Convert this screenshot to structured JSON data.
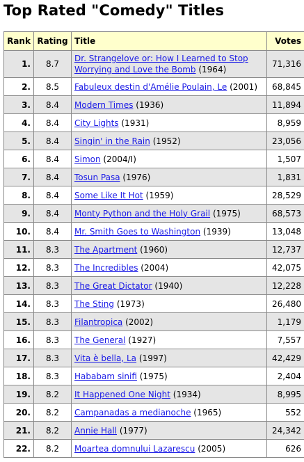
{
  "page": {
    "title": "Top Rated \"Comedy\" Titles"
  },
  "table": {
    "headers": {
      "rank": "Rank",
      "rating": "Rating",
      "title": "Title",
      "votes": "Votes"
    },
    "rows": [
      {
        "rank": "1.",
        "rating": "8.7",
        "title": "Dr. Strangelove or: How I Learned to Stop Worrying and Love the Bomb",
        "year": "(1964)",
        "votes": "71,316"
      },
      {
        "rank": "2.",
        "rating": "8.5",
        "title": "Fabuleux destin d'Amélie Poulain, Le",
        "year": "(2001)",
        "votes": "68,845"
      },
      {
        "rank": "3.",
        "rating": "8.4",
        "title": "Modern Times",
        "year": "(1936)",
        "votes": "11,894"
      },
      {
        "rank": "4.",
        "rating": "8.4",
        "title": "City Lights",
        "year": "(1931)",
        "votes": "8,959"
      },
      {
        "rank": "5.",
        "rating": "8.4",
        "title": "Singin' in the Rain",
        "year": "(1952)",
        "votes": "23,056"
      },
      {
        "rank": "6.",
        "rating": "8.4",
        "title": "Simon",
        "year": "(2004/I)",
        "votes": "1,507"
      },
      {
        "rank": "7.",
        "rating": "8.4",
        "title": "Tosun Pasa",
        "year": "(1976)",
        "votes": "1,831"
      },
      {
        "rank": "8.",
        "rating": "8.4",
        "title": "Some Like It Hot",
        "year": "(1959)",
        "votes": "28,529"
      },
      {
        "rank": "9.",
        "rating": "8.4",
        "title": "Monty Python and the Holy Grail",
        "year": "(1975)",
        "votes": "68,573"
      },
      {
        "rank": "10.",
        "rating": "8.4",
        "title": "Mr. Smith Goes to Washington",
        "year": "(1939)",
        "votes": "13,048"
      },
      {
        "rank": "11.",
        "rating": "8.3",
        "title": "The Apartment",
        "year": "(1960)",
        "votes": "12,737"
      },
      {
        "rank": "12.",
        "rating": "8.3",
        "title": "The Incredibles",
        "year": "(2004)",
        "votes": "42,075"
      },
      {
        "rank": "13.",
        "rating": "8.3",
        "title": "The Great Dictator",
        "year": "(1940)",
        "votes": "12,228"
      },
      {
        "rank": "14.",
        "rating": "8.3",
        "title": "The Sting",
        "year": "(1973)",
        "votes": "26,480"
      },
      {
        "rank": "15.",
        "rating": "8.3",
        "title": "Filantropica",
        "year": "(2002)",
        "votes": "1,179"
      },
      {
        "rank": "16.",
        "rating": "8.3",
        "title": "The General",
        "year": "(1927)",
        "votes": "7,557"
      },
      {
        "rank": "17.",
        "rating": "8.3",
        "title": "Vita è bella, La",
        "year": "(1997)",
        "votes": "42,429"
      },
      {
        "rank": "18.",
        "rating": "8.3",
        "title": "Hababam sinifi",
        "year": "(1975)",
        "votes": "2,404"
      },
      {
        "rank": "19.",
        "rating": "8.2",
        "title": "It Happened One Night",
        "year": "(1934)",
        "votes": "8,995"
      },
      {
        "rank": "20.",
        "rating": "8.2",
        "title": "Campanadas a medianoche",
        "year": "(1965)",
        "votes": "552"
      },
      {
        "rank": "21.",
        "rating": "8.2",
        "title": "Annie Hall",
        "year": "(1977)",
        "votes": "24,342"
      },
      {
        "rank": "22.",
        "rating": "8.2",
        "title": "Moartea domnului Lazarescu",
        "year": "(2005)",
        "votes": "626"
      }
    ]
  },
  "colors": {
    "header_bg": "#ffffcc",
    "row_shaded": "#e5e5e5",
    "link": "#1a1ae6",
    "border": "#8a8a8a"
  }
}
